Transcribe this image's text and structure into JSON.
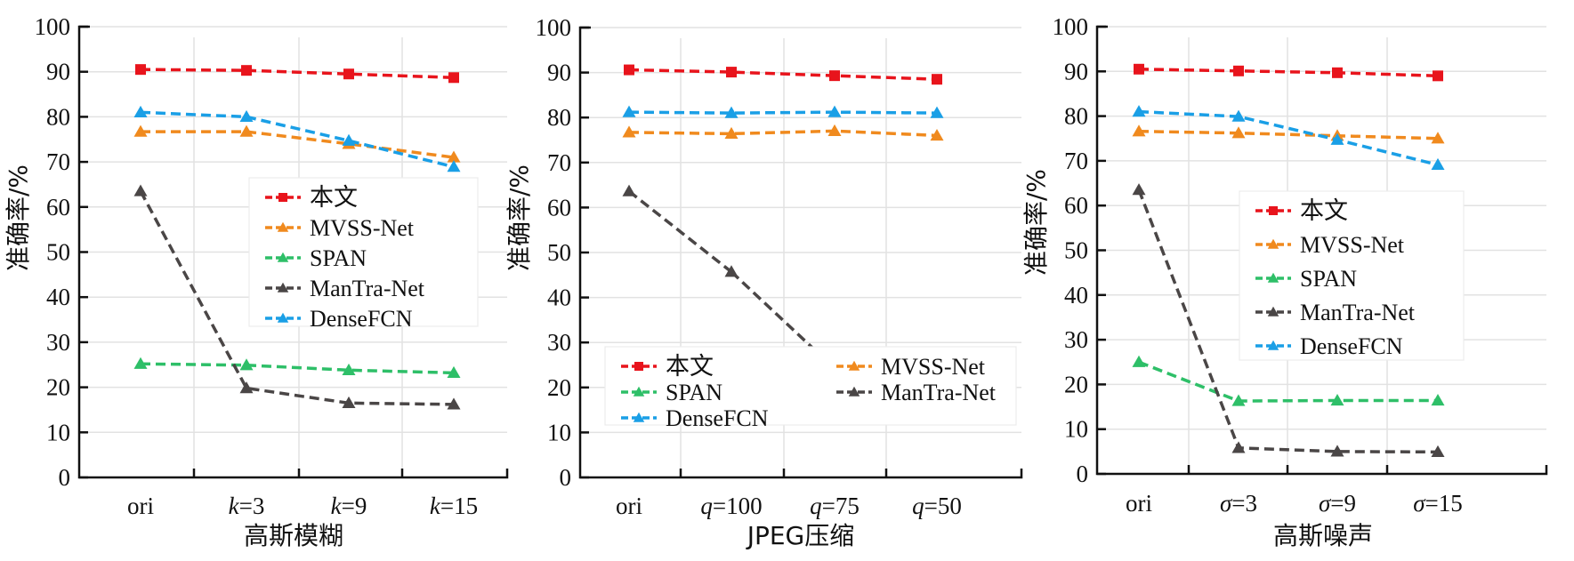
{
  "chart_data": [
    {
      "type": "line",
      "title": "",
      "xlabel": "高斯模糊",
      "ylabel": "准确率/%",
      "ylim": [
        0,
        100
      ],
      "yticks": [
        0,
        10,
        20,
        30,
        40,
        50,
        60,
        70,
        80,
        90,
        100
      ],
      "grid": true,
      "categories": [
        {
          "prefix": "",
          "text": "ori"
        },
        {
          "prefix": "k",
          "text": "=3"
        },
        {
          "prefix": "k",
          "text": "=9"
        },
        {
          "prefix": "k",
          "text": "=15"
        }
      ],
      "legend": {
        "placement": "center-right",
        "columns": 1
      },
      "series": [
        {
          "name": "本文",
          "color": "#e8141c",
          "marker": "square",
          "values": [
            90.5,
            90.3,
            89.5,
            88.7
          ]
        },
        {
          "name": "MVSS-Net",
          "color": "#f08a1e",
          "marker": "triangle",
          "values": [
            76.7,
            76.7,
            74.0,
            71.0
          ]
        },
        {
          "name": "SPAN",
          "color": "#2ebf68",
          "marker": "triangle",
          "values": [
            25.2,
            24.9,
            23.8,
            23.2
          ]
        },
        {
          "name": "ManTra-Net",
          "color": "#4a4646",
          "marker": "triangle",
          "values": [
            63.5,
            19.8,
            16.5,
            16.2
          ]
        },
        {
          "name": "DenseFCN",
          "color": "#1a9fe6",
          "marker": "triangle",
          "values": [
            81.0,
            80.0,
            74.7,
            68.9
          ]
        }
      ]
    },
    {
      "type": "line",
      "title": "",
      "xlabel": "JPEG压缩",
      "ylabel": "准确率/%",
      "ylim": [
        0,
        100
      ],
      "yticks": [
        0,
        10,
        20,
        30,
        40,
        50,
        60,
        70,
        80,
        90,
        100
      ],
      "grid": true,
      "categories": [
        {
          "prefix": "",
          "text": "ori"
        },
        {
          "prefix": "q",
          "text": "=100"
        },
        {
          "prefix": "q",
          "text": "=75"
        },
        {
          "prefix": "q",
          "text": "=50"
        }
      ],
      "legend": {
        "placement": "bottom",
        "columns": 2
      },
      "series": [
        {
          "name": "本文",
          "color": "#e8141c",
          "marker": "square",
          "values": [
            90.6,
            90.1,
            89.3,
            88.5
          ]
        },
        {
          "name": "MVSS-Net",
          "color": "#f08a1e",
          "marker": "triangle",
          "values": [
            76.7,
            76.4,
            77.0,
            76.0
          ]
        },
        {
          "name": "SPAN",
          "color": "#2ebf68",
          "marker": "triangle",
          "values": [
            null,
            null,
            null,
            null
          ]
        },
        {
          "name": "ManTra-Net",
          "color": "#4a4646",
          "marker": "triangle",
          "values": [
            63.6,
            45.7,
            null,
            null
          ]
        },
        {
          "name": "DenseFCN",
          "color": "#1a9fe6",
          "marker": "triangle",
          "values": [
            81.2,
            81.0,
            81.2,
            81.0
          ]
        }
      ],
      "note": "SPAN and later ManTra-Net points are occluded by the legend"
    },
    {
      "type": "line",
      "title": "",
      "xlabel": "高斯噪声",
      "ylabel": "准确率/%",
      "ylim": [
        0,
        100
      ],
      "yticks": [
        0,
        10,
        20,
        30,
        40,
        50,
        60,
        70,
        80,
        90,
        100
      ],
      "grid": true,
      "categories": [
        {
          "prefix": "",
          "text": "ori"
        },
        {
          "prefix": "σ",
          "text": "=3"
        },
        {
          "prefix": "σ",
          "text": "=9"
        },
        {
          "prefix": "σ",
          "text": "=15"
        }
      ],
      "legend": {
        "placement": "center-right",
        "columns": 1
      },
      "series": [
        {
          "name": "本文",
          "color": "#e8141c",
          "marker": "square",
          "values": [
            90.5,
            90.1,
            89.7,
            89.0
          ]
        },
        {
          "name": "MVSS-Net",
          "color": "#f08a1e",
          "marker": "triangle",
          "values": [
            76.6,
            76.2,
            75.6,
            75.0
          ]
        },
        {
          "name": "SPAN",
          "color": "#2ebf68",
          "marker": "triangle",
          "values": [
            25.0,
            16.3,
            16.4,
            16.4
          ]
        },
        {
          "name": "ManTra-Net",
          "color": "#4a4646",
          "marker": "triangle",
          "values": [
            63.5,
            5.8,
            5.0,
            4.9
          ]
        },
        {
          "name": "DenseFCN",
          "color": "#1a9fe6",
          "marker": "triangle",
          "values": [
            81.0,
            79.9,
            74.7,
            69.1
          ]
        }
      ]
    }
  ]
}
